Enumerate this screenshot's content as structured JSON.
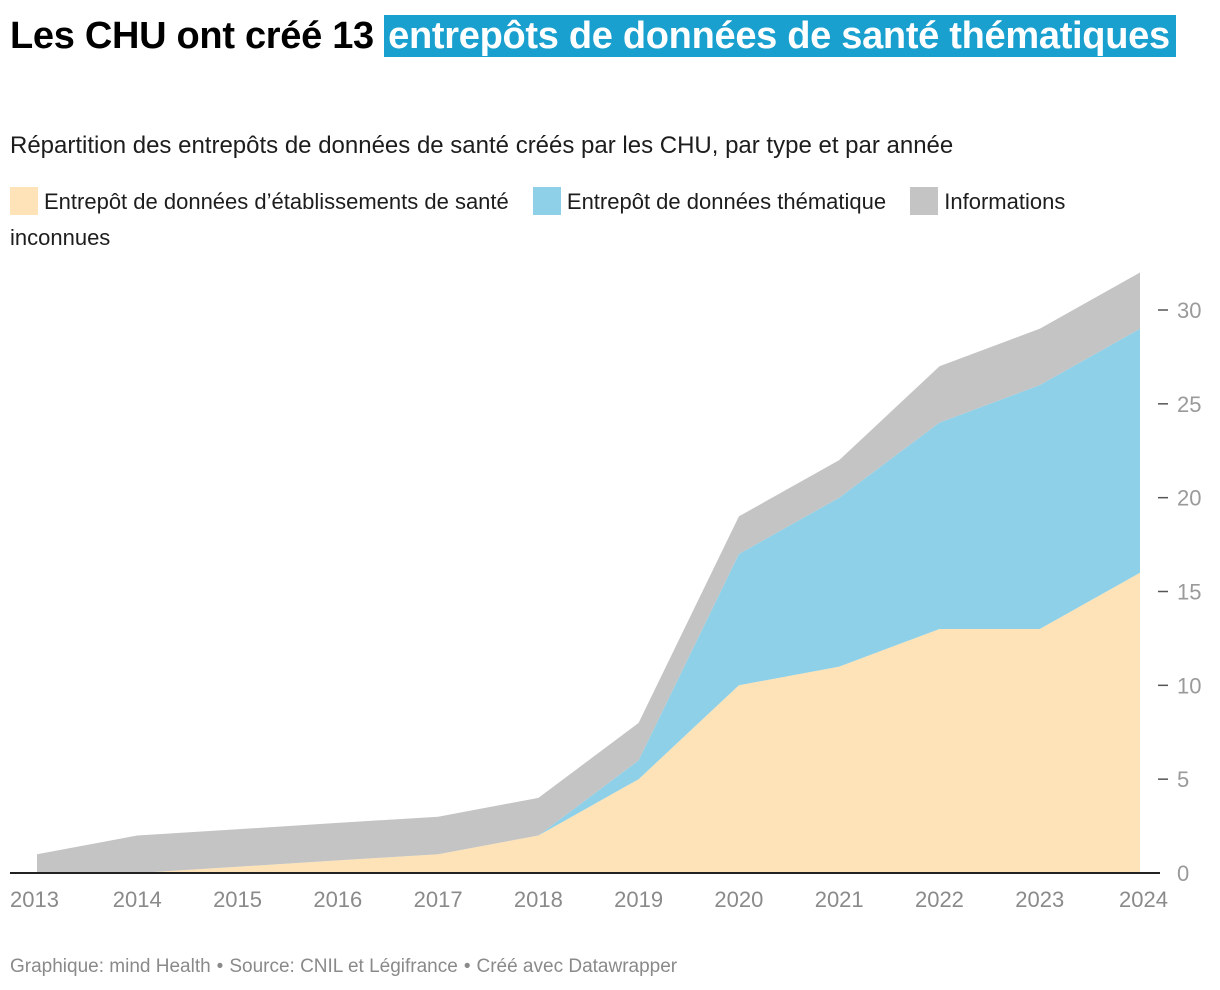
{
  "header": {
    "title_prefix": "Les CHU ont créé 13",
    "title_highlight": "entrepôts de données de santé thématiques",
    "subtitle": "Répartition des entrepôts de données de santé créés par les CHU, par type et par année"
  },
  "legend": {
    "items": [
      {
        "label": "Entrepôt de données d’établissements de santé",
        "color": "#fde3b7"
      },
      {
        "label": "Entrepôt de données thématique",
        "color": "#8ed0e8"
      },
      {
        "label": "Informations inconnues",
        "color": "#c4c4c4"
      }
    ]
  },
  "footer": {
    "graphic": "Graphique: mind Health",
    "source": "Source: CNIL et Légifrance",
    "made_with": "Créé avec Datawrapper",
    "separator": "•"
  },
  "chart_data": {
    "type": "area",
    "stacked": true,
    "x": [
      "2013",
      "2014",
      "2015",
      "2016",
      "2017",
      "2018",
      "2019",
      "2020",
      "2021",
      "2022",
      "2023",
      "2024"
    ],
    "series": [
      {
        "name": "Entrepôt de données d’établissements de santé",
        "color": "#fde3b7",
        "values": [
          0,
          0,
          0.33,
          0.67,
          1,
          2,
          5,
          10,
          11,
          13,
          13,
          16
        ]
      },
      {
        "name": "Entrepôt de données thématique",
        "color": "#8ed0e8",
        "values": [
          0,
          0,
          0,
          0,
          0,
          0,
          1,
          7,
          9,
          11,
          13,
          13
        ]
      },
      {
        "name": "Informations inconnues",
        "color": "#c4c4c4",
        "values": [
          1,
          2,
          2,
          2,
          2,
          2,
          2,
          2,
          2,
          3,
          3,
          3
        ]
      }
    ],
    "ylim": [
      0,
      32
    ],
    "yticks": [
      0,
      5,
      10,
      15,
      20,
      25,
      30
    ],
    "axis_position": "right",
    "xlabel": "",
    "ylabel": ""
  }
}
